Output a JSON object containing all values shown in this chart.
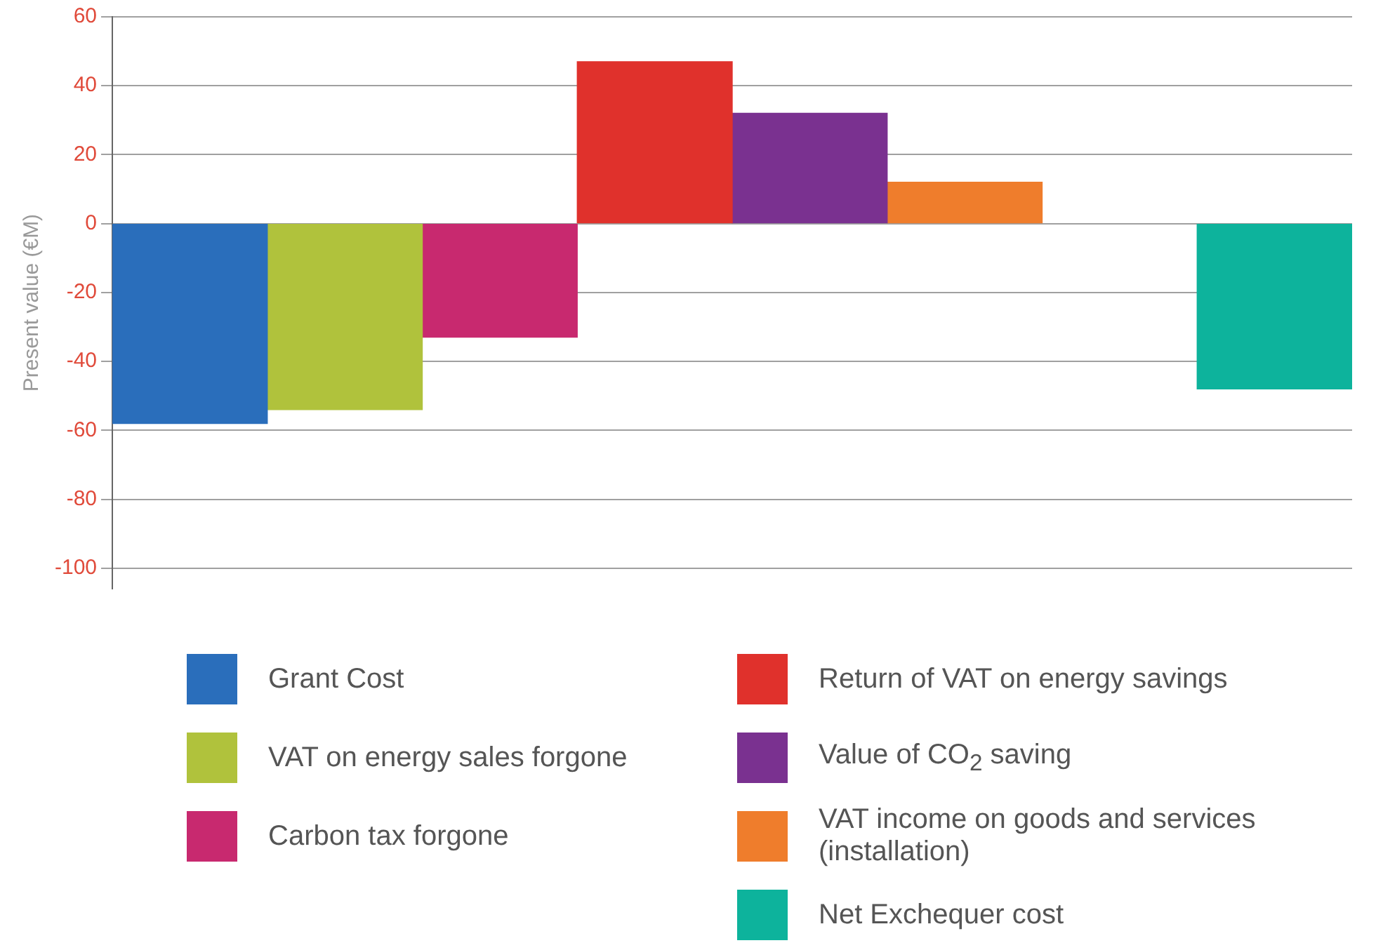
{
  "chart_data": {
    "type": "bar",
    "ylabel": "Present value (€M)",
    "categories": [
      null,
      null,
      null,
      null,
      null,
      null,
      null,
      null
    ],
    "series": [
      {
        "name": "Grant Cost",
        "color": "#2a6ebb",
        "values": [
          -58,
          null,
          null,
          null,
          null,
          null,
          null,
          null
        ]
      },
      {
        "name": "VAT on energy sales forgone",
        "color": "#b0c23c",
        "values": [
          null,
          -54,
          null,
          null,
          null,
          null,
          null,
          null
        ]
      },
      {
        "name": "Carbon tax forgone",
        "color": "#c8296f",
        "values": [
          null,
          null,
          -33,
          null,
          null,
          null,
          null,
          null
        ]
      },
      {
        "name": "Return of VAT on energy savings",
        "color": "#e0312c",
        "values": [
          null,
          null,
          null,
          47,
          null,
          null,
          null,
          null
        ]
      },
      {
        "name": "Value of CO$_{2}$ saving",
        "color": "#7a3190",
        "values": [
          null,
          null,
          null,
          null,
          32,
          null,
          null,
          null
        ]
      },
      {
        "name": "VAT income on goods and services (installation)",
        "color": "#ef7d2c",
        "values": [
          null,
          null,
          null,
          null,
          null,
          12,
          null,
          null
        ]
      },
      {
        "name": "Net Exchequer cost",
        "color": "#0db39c",
        "values": [
          null,
          null,
          null,
          null,
          null,
          null,
          null,
          -48
        ]
      }
    ],
    "ylim": [
      -106,
      60
    ],
    "yticks": [
      -100,
      -80,
      -60,
      -40,
      -20,
      0,
      20,
      40,
      60
    ],
    "grid": "y",
    "legend": "bottom"
  }
}
